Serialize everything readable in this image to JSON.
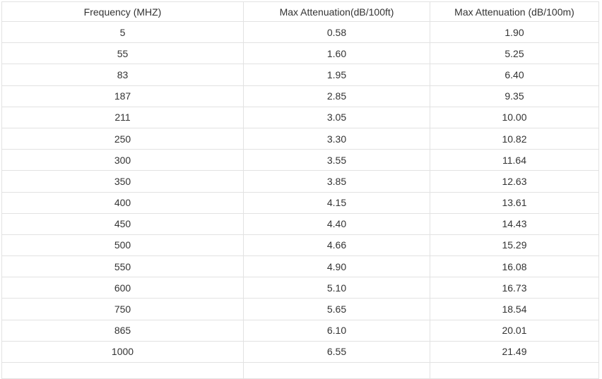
{
  "table": {
    "headers": [
      "Frequency (MHZ)",
      "Max Attenuation(dB/100ft)",
      "Max Attenuation (dB/100m)"
    ],
    "rows": [
      [
        "5",
        "0.58",
        "1.90"
      ],
      [
        "55",
        "1.60",
        "5.25"
      ],
      [
        "83",
        "1.95",
        "6.40"
      ],
      [
        "187",
        "2.85",
        "9.35"
      ],
      [
        "211",
        "3.05",
        "10.00"
      ],
      [
        "250",
        "3.30",
        "10.82"
      ],
      [
        "300",
        "3.55",
        "11.64"
      ],
      [
        "350",
        "3.85",
        "12.63"
      ],
      [
        "400",
        "4.15",
        "13.61"
      ],
      [
        "450",
        "4.40",
        "14.43"
      ],
      [
        "500",
        "4.66",
        "15.29"
      ],
      [
        "550",
        "4.90",
        "16.08"
      ],
      [
        "600",
        "5.10",
        "16.73"
      ],
      [
        "750",
        "5.65",
        "18.54"
      ],
      [
        "865",
        "6.10",
        "20.01"
      ],
      [
        "1000",
        "6.55",
        "21.49"
      ]
    ]
  },
  "colors": {
    "background": "#ffffff",
    "border": "#e2e2e2",
    "text": "#333333"
  },
  "chart_data": {
    "type": "table",
    "title": "",
    "columns": [
      "Frequency (MHZ)",
      "Max Attenuation(dB/100ft)",
      "Max Attenuation (dB/100m)"
    ],
    "frequency_mhz": [
      5,
      55,
      83,
      187,
      211,
      250,
      300,
      350,
      400,
      450,
      500,
      550,
      600,
      750,
      865,
      1000
    ],
    "max_attenuation_db_per_100ft": [
      0.58,
      1.6,
      1.95,
      2.85,
      3.05,
      3.3,
      3.55,
      3.85,
      4.15,
      4.4,
      4.66,
      4.9,
      5.1,
      5.65,
      6.1,
      6.55
    ],
    "max_attenuation_db_per_100m": [
      1.9,
      5.25,
      6.4,
      9.35,
      10.0,
      10.82,
      11.64,
      12.63,
      13.61,
      14.43,
      15.29,
      16.08,
      16.73,
      18.54,
      20.01,
      21.49
    ],
    "layout_hints": {
      "alignment": "center",
      "header_row": true,
      "grid": true,
      "last_row_clipped_at_bottom": true
    }
  }
}
